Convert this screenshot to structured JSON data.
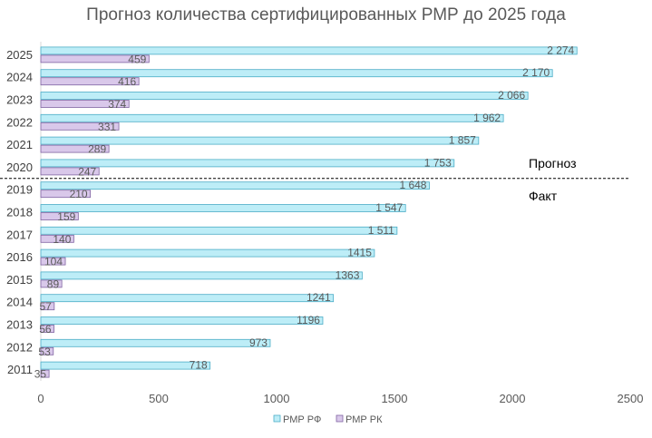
{
  "chart_data": {
    "type": "bar",
    "orientation": "horizontal",
    "title": "Прогноз количества сертифицированных РМР до 2025 года",
    "categories": [
      "2011",
      "2012",
      "2013",
      "2014",
      "2015",
      "2016",
      "2017",
      "2018",
      "2019",
      "2020",
      "2021",
      "2022",
      "2023",
      "2024",
      "2025"
    ],
    "series": [
      {
        "name": "РМР РФ",
        "color": "#BDEDF7",
        "stroke": "#4BACC6",
        "values": [
          718,
          973,
          1196,
          1241,
          1363,
          1415,
          1511,
          1547,
          1648,
          1753,
          1857,
          1962,
          2066,
          2170,
          2274
        ],
        "labels": [
          "718",
          "973",
          "1196",
          "1241",
          "1363",
          "1415",
          "1 511",
          "1 547",
          "1 648",
          "1 753",
          "1 857",
          "1 962",
          "2 066",
          "2 170",
          "2 274"
        ]
      },
      {
        "name": "РМР РК",
        "color": "#D9C8EA",
        "stroke": "#8064A2",
        "values": [
          35,
          53,
          56,
          57,
          89,
          104,
          140,
          159,
          210,
          247,
          289,
          331,
          374,
          416,
          459
        ],
        "labels": [
          "35",
          "53",
          "56",
          "57",
          "89",
          "104",
          "140",
          "159",
          "210",
          "247",
          "289",
          "331",
          "374",
          "416",
          "459"
        ]
      }
    ],
    "xlim": [
      0,
      2500
    ],
    "xticks": [
      "0",
      "500",
      "1000",
      "1500",
      "2000",
      "2500"
    ],
    "xtick_values": [
      0,
      500,
      1000,
      1500,
      2000,
      2500
    ],
    "annotations": {
      "forecast": "Прогноз",
      "fact": "Факт"
    },
    "legend_position": "bottom",
    "grid": false
  }
}
